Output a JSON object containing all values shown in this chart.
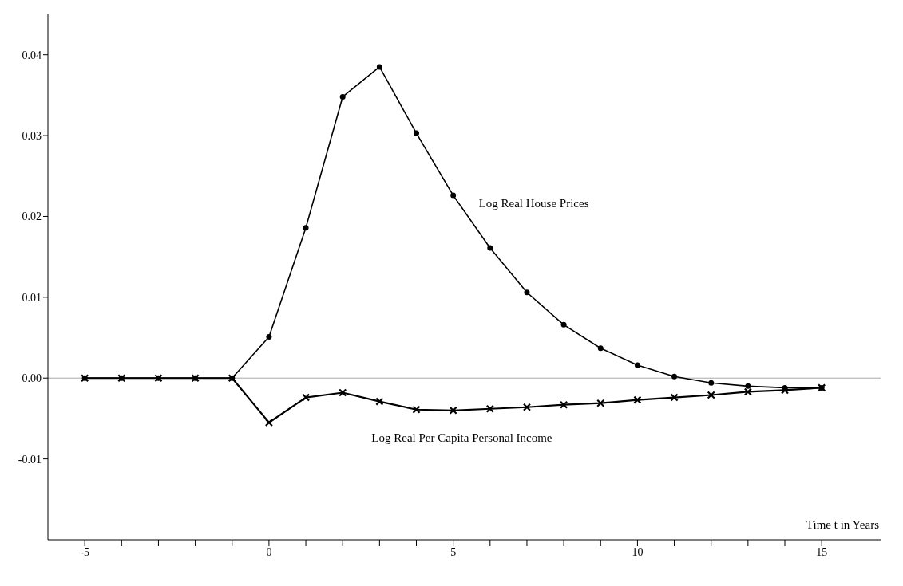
{
  "chart_data": {
    "type": "line",
    "xlabel": "Time t in Years",
    "x": [
      -5,
      -4,
      -3,
      -2,
      -1,
      0,
      1,
      2,
      3,
      4,
      5,
      6,
      7,
      8,
      9,
      10,
      11,
      12,
      13,
      14,
      15
    ],
    "series": [
      {
        "name": "Log Real House Prices",
        "color": "#000000",
        "marker": "circle",
        "values": [
          0,
          0,
          0,
          0,
          0,
          0.0051,
          0.0186,
          0.0348,
          0.0385,
          0.0303,
          0.0226,
          0.0161,
          0.0106,
          0.0066,
          0.0037,
          0.0016,
          0.0002,
          -0.0006,
          -0.001,
          -0.0012,
          -0.0012
        ]
      },
      {
        "name": "Log Real Per Capita Personal Income",
        "color": "#000000",
        "marker": "cross",
        "values": [
          0,
          0,
          0,
          0,
          0,
          -0.0055,
          -0.0024,
          -0.0018,
          -0.0029,
          -0.0039,
          -0.004,
          -0.0038,
          -0.0036,
          -0.0033,
          -0.0031,
          -0.0027,
          -0.0024,
          -0.0021,
          -0.0017,
          -0.0015,
          -0.0012
        ]
      }
    ],
    "xlim": [
      -6,
      16.6
    ],
    "xticks": [
      -5,
      {
        "value": -4,
        "label": null
      },
      {
        "value": -3,
        "label": null
      },
      {
        "value": -2,
        "label": null
      },
      {
        "value": -1,
        "label": null
      },
      0,
      {
        "value": 1,
        "label": null
      },
      {
        "value": 2,
        "label": null
      },
      {
        "value": 3,
        "label": null
      },
      {
        "value": 4,
        "label": null
      },
      5,
      {
        "value": 6,
        "label": null
      },
      {
        "value": 7,
        "label": null
      },
      {
        "value": 8,
        "label": null
      },
      {
        "value": 9,
        "label": null
      },
      10,
      {
        "value": 11,
        "label": null
      },
      {
        "value": 12,
        "label": null
      },
      {
        "value": 13,
        "label": null
      },
      {
        "value": 14,
        "label": null
      },
      15
    ],
    "ylim": [
      -0.02,
      0.045
    ],
    "yticks": [
      {
        "value": -0.01,
        "label": "-0.01"
      },
      {
        "value": 0,
        "label": "0.00"
      },
      {
        "value": 0.01,
        "label": "0.01"
      },
      {
        "value": 0.02,
        "label": "0.02"
      },
      {
        "value": 0.03,
        "label": "0.03"
      },
      {
        "value": 0.04,
        "label": "0.04"
      }
    ],
    "ref_lines": [
      {
        "axis": "y",
        "value": 0,
        "color": "#aaaaaa"
      }
    ],
    "grid": false,
    "legend": false
  }
}
